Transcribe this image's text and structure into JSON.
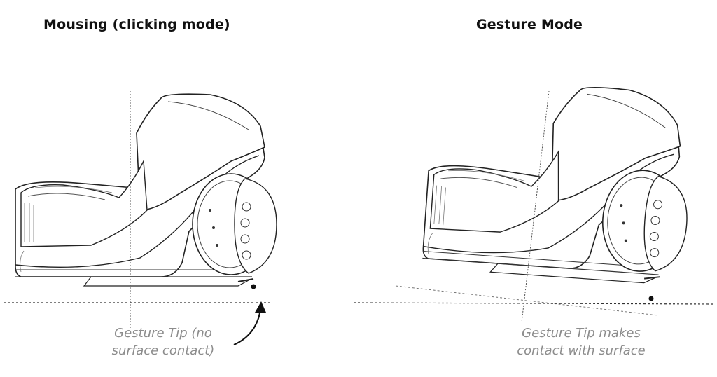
{
  "left_panel": {
    "title": "Mousing (clicking mode)",
    "caption_line1": "Gesture Tip (no",
    "caption_line2": "surface contact)"
  },
  "right_panel": {
    "title": "Gesture Mode",
    "caption_line1": "Gesture Tip makes",
    "caption_line2": "contact with surface"
  },
  "colors": {
    "line": "#222222",
    "guide": "#555555",
    "caption": "#8c8c8c"
  }
}
